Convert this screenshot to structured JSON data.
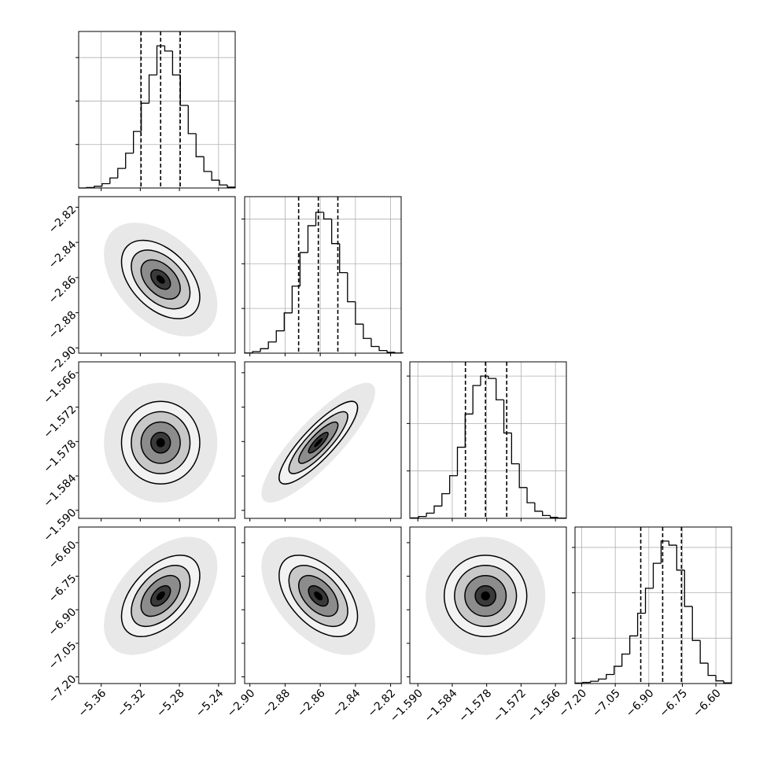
{
  "chart_data": {
    "type": "corner",
    "color": "#000000",
    "params": [
      {
        "lim": [
          -5.383,
          -5.223
        ],
        "ticks": [
          {
            "value": -5.36,
            "label": "−5.36"
          },
          {
            "value": -5.32,
            "label": "−5.32"
          },
          {
            "value": -5.28,
            "label": "−5.28"
          },
          {
            "value": -5.24,
            "label": "−5.24"
          }
        ],
        "bins": [
          -5.383,
          -5.375,
          -5.367,
          -5.359,
          -5.351,
          -5.343,
          -5.335,
          -5.327,
          -5.319,
          -5.311,
          -5.303,
          -5.295,
          -5.287,
          -5.279,
          -5.271,
          -5.263,
          -5.255,
          -5.247,
          -5.239,
          -5.231,
          -5.223
        ],
        "counts": [
          0,
          10,
          40,
          100,
          230,
          450,
          800,
          1300,
          1950,
          2600,
          3270,
          3150,
          2600,
          1900,
          1250,
          720,
          380,
          180,
          70,
          20
        ],
        "hist_ylim": [
          0,
          3600
        ],
        "hist_yticks": [
          1000,
          2000,
          3000
        ],
        "quantiles": [
          -5.3192,
          -5.2992,
          -5.2792
        ]
      },
      {
        "lim": [
          -2.903,
          -2.814
        ],
        "ticks": [
          {
            "value": -2.9,
            "label": "−2.90"
          },
          {
            "value": -2.88,
            "label": "−2.88"
          },
          {
            "value": -2.86,
            "label": "−2.86"
          },
          {
            "value": -2.84,
            "label": "−2.84"
          },
          {
            "value": -2.82,
            "label": "−2.82"
          }
        ],
        "bins": [
          -2.903,
          -2.8985,
          -2.894,
          -2.8895,
          -2.885,
          -2.8805,
          -2.876,
          -2.8715,
          -2.867,
          -2.8625,
          -2.858,
          -2.8535,
          -2.849,
          -2.8445,
          -2.84,
          -2.8355,
          -2.831,
          -2.8265,
          -2.822,
          -2.8175,
          -2.813
        ],
        "counts": [
          5,
          35,
          100,
          250,
          500,
          900,
          1500,
          2250,
          2850,
          3150,
          3000,
          2450,
          1800,
          1150,
          650,
          330,
          150,
          60,
          20,
          5
        ],
        "hist_ylim": [
          0,
          3500
        ],
        "hist_yticks": [
          1000,
          2000,
          3000
        ],
        "quantiles": [
          -2.8723,
          -2.8611,
          -2.85
        ]
      },
      {
        "lim": [
          -1.5914,
          -1.5641
        ],
        "ticks": [
          {
            "value": -1.59,
            "label": "−1.590"
          },
          {
            "value": -1.584,
            "label": "−1.584"
          },
          {
            "value": -1.578,
            "label": "−1.578"
          },
          {
            "value": -1.572,
            "label": "−1.572"
          },
          {
            "value": -1.566,
            "label": "−1.566"
          }
        ],
        "bins": [
          -1.5912,
          -1.58985,
          -1.5885,
          -1.58715,
          -1.5858,
          -1.58445,
          -1.5831,
          -1.58175,
          -1.5804,
          -1.57905,
          -1.5777,
          -1.57635,
          -1.575,
          -1.57365,
          -1.5723,
          -1.57095,
          -1.5696,
          -1.56825,
          -1.5669,
          -1.56555,
          -1.5642
        ],
        "counts": [
          10,
          40,
          110,
          260,
          520,
          900,
          1500,
          2200,
          2800,
          3000,
          2950,
          2500,
          1800,
          1150,
          650,
          330,
          150,
          60,
          20,
          5
        ],
        "hist_ylim": [
          0,
          3300
        ],
        "hist_yticks": [
          1000,
          2000,
          3000
        ],
        "quantiles": [
          -1.5817,
          -1.5782,
          -1.5745
        ]
      },
      {
        "lim": [
          -7.23,
          -6.53
        ],
        "ticks": [
          {
            "value": -7.2,
            "label": "−7.20"
          },
          {
            "value": -7.05,
            "label": "−7.05"
          },
          {
            "value": -6.9,
            "label": "−6.90"
          },
          {
            "value": -6.75,
            "label": "−6.75"
          },
          {
            "value": -6.6,
            "label": "−6.60"
          }
        ],
        "bins": [
          -7.23,
          -7.195,
          -7.16,
          -7.125,
          -7.09,
          -7.055,
          -7.02,
          -6.985,
          -6.95,
          -6.915,
          -6.88,
          -6.845,
          -6.81,
          -6.775,
          -6.74,
          -6.705,
          -6.67,
          -6.635,
          -6.6,
          -6.565,
          -6.53
        ],
        "counts": [
          10,
          25,
          50,
          100,
          200,
          380,
          650,
          1050,
          1550,
          2100,
          2650,
          3140,
          3050,
          2500,
          1700,
          950,
          450,
          180,
          60,
          15
        ],
        "hist_ylim": [
          0,
          3450
        ],
        "hist_yticks": [
          1000,
          2000,
          3000
        ],
        "quantiles": [
          -6.936,
          -6.838,
          -6.754
        ]
      }
    ],
    "corr": [
      [
        -0.45
      ],
      [
        0,
        0.85
      ],
      [
        0.5,
        -0.5,
        0
      ]
    ]
  }
}
